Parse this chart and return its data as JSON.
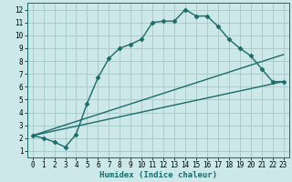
{
  "xlabel": "Humidex (Indice chaleur)",
  "bg_color": "#cce8e8",
  "grid_color": "#aacccc",
  "line_color": "#1a6b6b",
  "xlim": [
    -0.5,
    23.5
  ],
  "ylim": [
    0.5,
    12.5
  ],
  "xticks": [
    0,
    1,
    2,
    3,
    4,
    5,
    6,
    7,
    8,
    9,
    10,
    11,
    12,
    13,
    14,
    15,
    16,
    17,
    18,
    19,
    20,
    21,
    22,
    23
  ],
  "yticks": [
    1,
    2,
    3,
    4,
    5,
    6,
    7,
    8,
    9,
    10,
    11,
    12
  ],
  "curve1_x": [
    0,
    1,
    2,
    3,
    4,
    5,
    6,
    7,
    8,
    9,
    10,
    11,
    12,
    13,
    14,
    15,
    16,
    17,
    18,
    19,
    20,
    21,
    22,
    23
  ],
  "curve1_y": [
    2.2,
    2.0,
    1.7,
    1.3,
    2.3,
    4.7,
    6.7,
    8.2,
    9.0,
    9.3,
    9.7,
    11.0,
    11.1,
    11.1,
    12.0,
    11.5,
    11.5,
    10.7,
    9.7,
    9.0,
    8.4,
    7.4,
    6.4,
    6.4
  ],
  "curve2_x": [
    0,
    23
  ],
  "curve2_y": [
    2.2,
    8.5
  ],
  "curve3_x": [
    0,
    23
  ],
  "curve3_y": [
    2.2,
    6.4
  ],
  "marker": "D",
  "marker_size": 2.5,
  "linewidth": 1.0,
  "tick_fontsize": 5.5,
  "xlabel_fontsize": 6.5
}
